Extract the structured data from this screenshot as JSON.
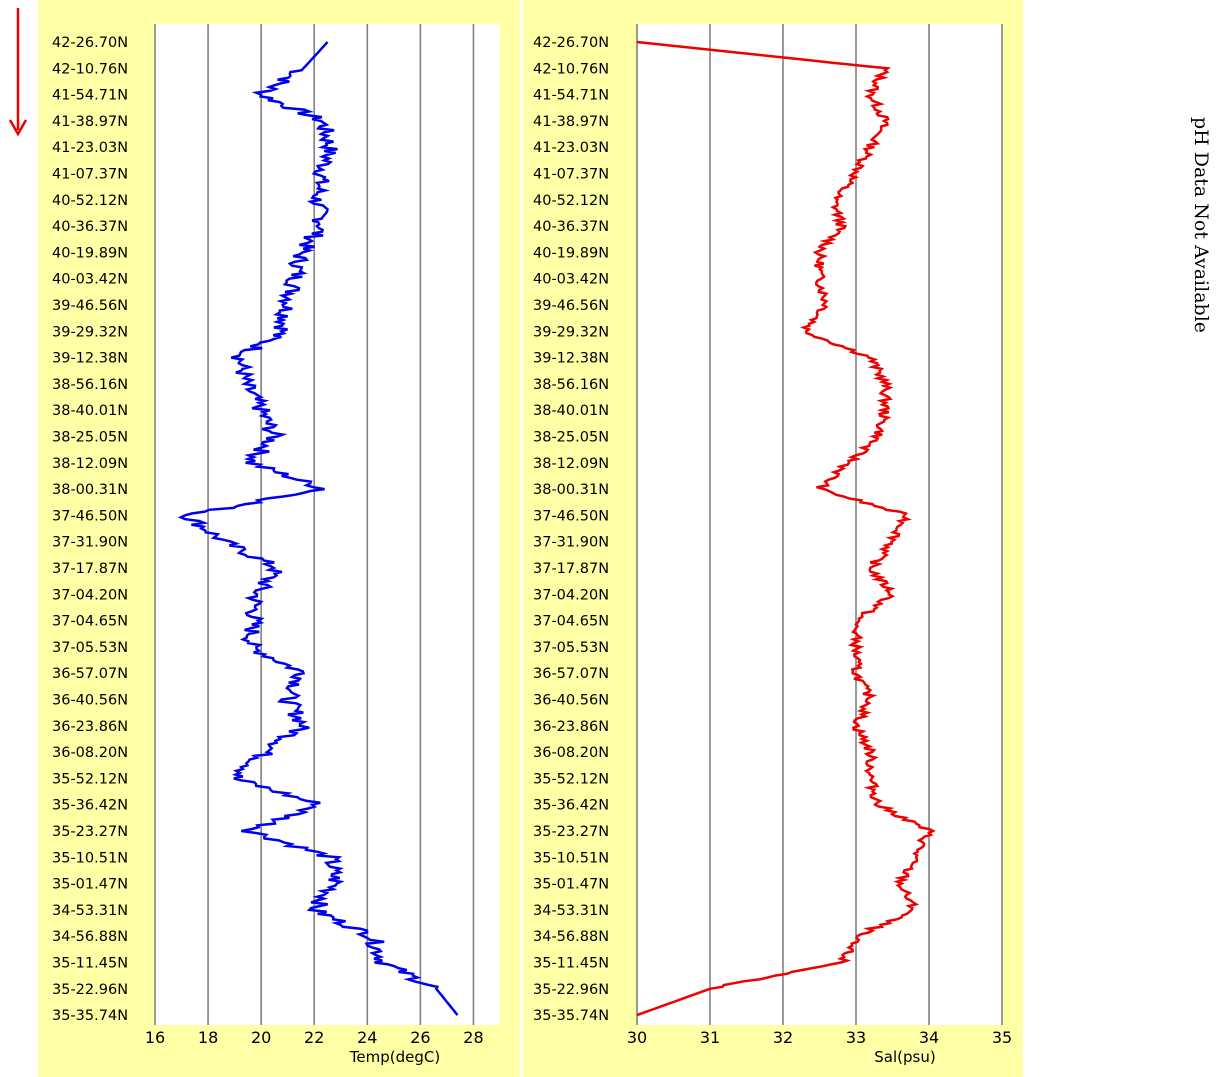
{
  "chart_data": [
    {
      "type": "line",
      "xlabel": "Temp(degC)",
      "xlim": [
        16,
        29
      ],
      "xticks": [
        16,
        18,
        20,
        22,
        24,
        26,
        28
      ],
      "color": "#0000ee",
      "series_orientation": "vertical",
      "y_categories": [
        "42-26.70N",
        "42-10.76N",
        "41-54.71N",
        "41-38.97N",
        "41-23.03N",
        "41-07.37N",
        "40-52.12N",
        "40-36.37N",
        "40-19.89N",
        "40-03.42N",
        "39-46.56N",
        "39-29.32N",
        "39-12.38N",
        "38-56.16N",
        "38-40.01N",
        "38-25.05N",
        "38-12.09N",
        "38-00.31N",
        "37-46.50N",
        "37-31.90N",
        "37-17.87N",
        "37-04.20N",
        "37-04.65N",
        "37-05.53N",
        "36-57.07N",
        "36-40.56N",
        "36-23.86N",
        "36-08.20N",
        "35-52.12N",
        "35-36.42N",
        "35-23.27N",
        "35-10.51N",
        "35-01.47N",
        "34-53.31N",
        "34-56.88N",
        "35-11.45N",
        "35-22.96N",
        "35-35.74N"
      ],
      "values": [
        22.5,
        21.6,
        20.0,
        22.3,
        22.6,
        22.3,
        22.1,
        22.3,
        21.5,
        21.3,
        21.0,
        20.8,
        19.2,
        19.4,
        20.0,
        20.5,
        19.6,
        22.4,
        17.2,
        18.6,
        20.6,
        19.8,
        19.7,
        19.6,
        21.6,
        21.0,
        21.6,
        20.2,
        19.0,
        22.2,
        19.6,
        22.6,
        22.8,
        22.0,
        24.2,
        24.6,
        26.6,
        27.4
      ]
    },
    {
      "type": "line",
      "xlabel": "Sal(psu)",
      "xlim": [
        30,
        35
      ],
      "xticks": [
        30,
        31,
        32,
        33,
        34,
        35
      ],
      "color": "#ee0000",
      "series_orientation": "vertical",
      "y_categories": [
        "42-26.70N",
        "42-10.76N",
        "41-54.71N",
        "41-38.97N",
        "41-23.03N",
        "41-07.37N",
        "40-52.12N",
        "40-36.37N",
        "40-19.89N",
        "40-03.42N",
        "39-46.56N",
        "39-29.32N",
        "39-12.38N",
        "38-56.16N",
        "38-40.01N",
        "38-25.05N",
        "38-12.09N",
        "38-00.31N",
        "37-46.50N",
        "37-31.90N",
        "37-17.87N",
        "37-04.20N",
        "37-04.65N",
        "37-05.53N",
        "36-57.07N",
        "36-40.56N",
        "36-23.86N",
        "36-08.20N",
        "35-52.12N",
        "35-36.42N",
        "35-23.27N",
        "35-10.51N",
        "35-01.47N",
        "34-53.31N",
        "34-56.88N",
        "35-11.45N",
        "35-22.96N",
        "35-35.74N"
      ],
      "values": [
        30.0,
        33.4,
        33.2,
        33.4,
        33.2,
        33.0,
        32.7,
        32.8,
        32.5,
        32.5,
        32.6,
        32.3,
        33.2,
        33.4,
        33.4,
        33.3,
        32.9,
        32.5,
        33.7,
        33.5,
        33.2,
        33.5,
        33.0,
        33.0,
        33.0,
        33.2,
        33.0,
        33.2,
        33.2,
        33.3,
        34.0,
        33.8,
        33.6,
        33.8,
        33.0,
        32.8,
        31.0,
        30.0
      ]
    }
  ],
  "note": "pH Data Not Available"
}
